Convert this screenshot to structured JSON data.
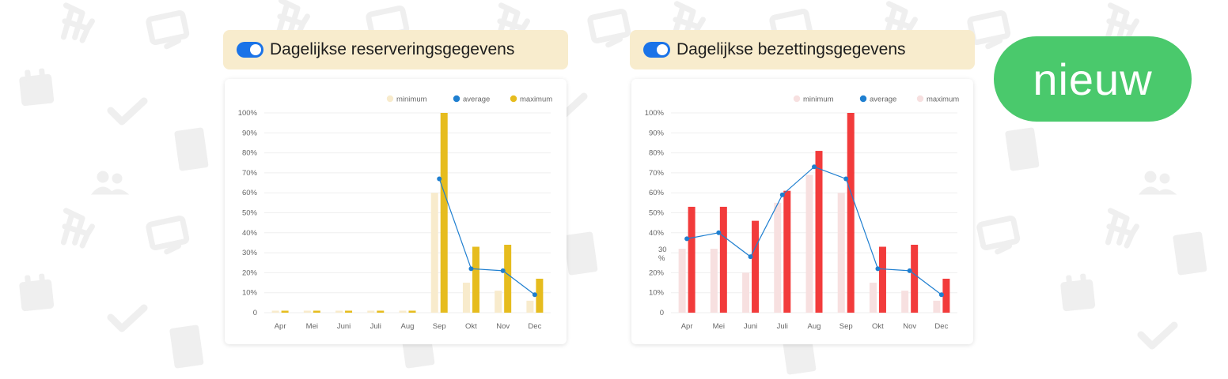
{
  "colors": {
    "toggle_on": "#1a73e8",
    "header_bg": "#f8eccd",
    "badge_bg": "#4ac96c",
    "background_icons": "#efefef",
    "average_line": "#1f7fd0"
  },
  "background": {
    "icons": [
      "chair-icon",
      "monitor-icon",
      "calendar-icon",
      "checkmark-icon",
      "building-icon",
      "people-icon"
    ]
  },
  "badge": {
    "label": "nieuw"
  },
  "panels": [
    {
      "header": {
        "toggle_on": true,
        "title": "Dagelijkse reserveringsgegevens"
      },
      "chart_data": {
        "type": "bar",
        "categories": [
          "Apr",
          "Mei",
          "Juni",
          "Juli",
          "Aug",
          "Sep",
          "Okt",
          "Nov",
          "Dec"
        ],
        "y_ticks": [
          "0",
          "10%",
          "20%",
          "30%",
          "40%",
          "50%",
          "60%",
          "70%",
          "80%",
          "90%",
          "100%"
        ],
        "ylabel": "",
        "ylim": [
          0,
          100
        ],
        "grid": true,
        "legend": "top-right",
        "series": [
          {
            "name": "minimum",
            "type": "bar",
            "color": "#f8ebcc",
            "values": [
              1,
              1,
              1,
              1,
              1,
              60,
              15,
              11,
              6
            ]
          },
          {
            "name": "average",
            "type": "line",
            "color": "#1f7fd0",
            "values": [
              null,
              null,
              null,
              null,
              null,
              67,
              22,
              21,
              9
            ]
          },
          {
            "name": "maximum",
            "type": "bar",
            "color": "#e6bc1e",
            "values": [
              1,
              1,
              1,
              1,
              1,
              100,
              33,
              34,
              17
            ]
          }
        ]
      }
    },
    {
      "header": {
        "toggle_on": true,
        "title": "Dagelijkse bezettingsgegevens"
      },
      "chart_data": {
        "type": "bar",
        "categories": [
          "Apr",
          "Mei",
          "Juni",
          "Juli",
          "Aug",
          "Sep",
          "Okt",
          "Nov",
          "Dec"
        ],
        "y_ticks": [
          "0",
          "10%",
          "20%",
          "30\n%",
          "40%",
          "50%",
          "60%",
          "70%",
          "80%",
          "90%",
          "100%"
        ],
        "ylabel": "",
        "ylim": [
          0,
          100
        ],
        "grid": true,
        "legend": "top-right",
        "series": [
          {
            "name": "minimum",
            "type": "bar",
            "color": "#f7e0e0",
            "values": [
              32,
              32,
              20,
              55,
              69,
              60,
              15,
              11,
              6
            ]
          },
          {
            "name": "average",
            "type": "line",
            "color": "#1f7fd0",
            "values": [
              37,
              40,
              28,
              59,
              73,
              67,
              22,
              21,
              9
            ]
          },
          {
            "name": "maximum",
            "type": "bar",
            "color": "#f23b3b",
            "values": [
              53,
              53,
              46,
              61,
              81,
              100,
              33,
              34,
              17
            ]
          }
        ],
        "legend_swatch_maximum": "#f7e0e0"
      }
    }
  ]
}
